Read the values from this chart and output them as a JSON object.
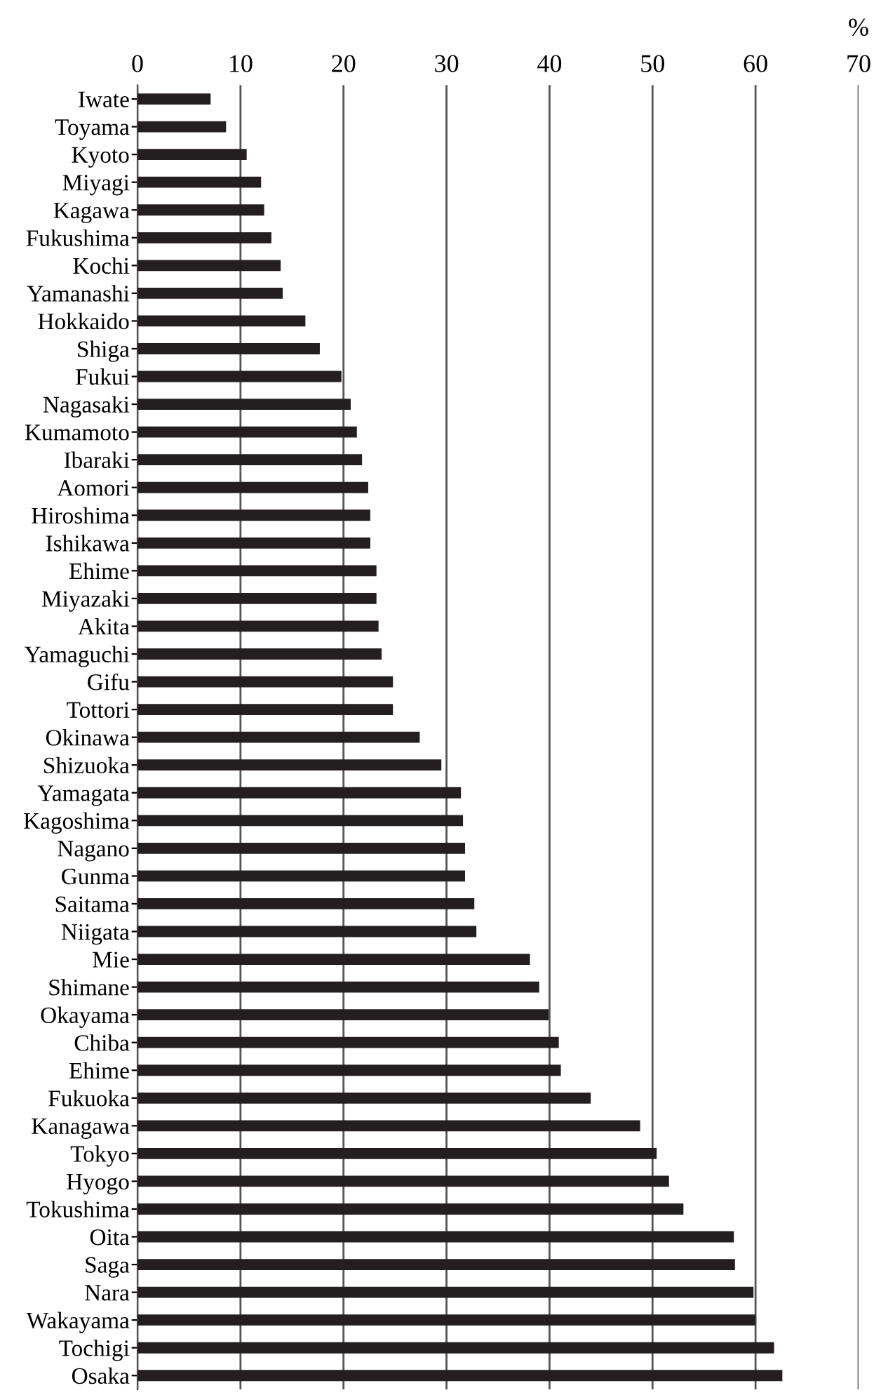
{
  "chart_data": {
    "type": "bar",
    "orientation": "horizontal",
    "xlabel": "%",
    "categories": [
      "Iwate",
      "Toyama",
      "Kyoto",
      "Miyagi",
      "Kagawa",
      "Fukushima",
      "Kochi",
      "Yamanashi",
      "Hokkaido",
      "Shiga",
      "Fukui",
      "Nagasaki",
      "Kumamoto",
      "Ibaraki",
      "Aomori",
      "Hiroshima",
      "Ishikawa",
      "Ehime",
      "Miyazaki",
      "Akita",
      "Yamaguchi",
      "Gifu",
      "Tottori",
      "Okinawa",
      "Shizuoka",
      "Yamagata",
      "Kagoshima",
      "Nagano",
      "Gunma",
      "Saitama",
      "Niigata",
      "Mie",
      "Shimane",
      "Okayama",
      "Chiba",
      "Ehime",
      "Fukuoka",
      "Kanagawa",
      "Tokyo",
      "Hyogo",
      "Tokushima",
      "Oita",
      "Saga",
      "Nara",
      "Wakayama",
      "Tochigi",
      "Osaka"
    ],
    "values": [
      7.1,
      8.6,
      10.6,
      12.0,
      12.3,
      13.0,
      13.9,
      14.1,
      16.3,
      17.7,
      19.8,
      20.7,
      21.3,
      21.8,
      22.4,
      22.6,
      22.6,
      23.2,
      23.2,
      23.4,
      23.7,
      24.8,
      24.8,
      27.4,
      29.5,
      31.4,
      31.6,
      31.8,
      31.8,
      32.7,
      32.9,
      38.1,
      39.0,
      39.9,
      40.9,
      41.1,
      44.0,
      48.8,
      50.4,
      51.6,
      53.0,
      57.9,
      58.0,
      59.8,
      60.0,
      61.8,
      62.6
    ],
    "color": "#231f20",
    "xlim": [
      0,
      70
    ],
    "xticks": [
      0,
      10,
      20,
      30,
      40,
      50,
      60,
      70
    ],
    "grid": "x",
    "legend": false
  }
}
